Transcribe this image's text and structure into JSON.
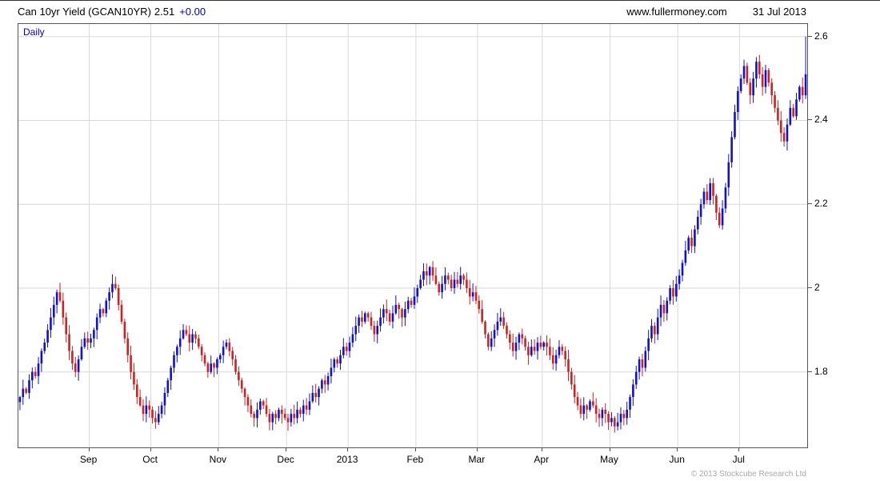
{
  "header": {
    "title": "Can 10yr Yield (GCAN10YR)",
    "price": "2.51",
    "change": "+0.00",
    "website": "www.fullermoney.com",
    "date": "31 Jul 2013"
  },
  "chart": {
    "frequency_label": "Daily",
    "copyright": "© 2013 Stockcube Research Ltd"
  },
  "chart_data": {
    "type": "candlestick",
    "title": "Can 10yr Yield (GCAN10YR)",
    "frequency": "Daily",
    "last_close": 2.51,
    "change": 0.0,
    "last_day_high": 2.6,
    "up_color": "#1111cc",
    "down_color": "#cc2222",
    "grid": true,
    "legend_position": "none",
    "ylim": [
      1.62,
      2.63
    ],
    "y_ticks": [
      {
        "label": "1.8",
        "value": 1.8
      },
      {
        "label": "2",
        "value": 2.0
      },
      {
        "label": "2.2",
        "value": 2.2
      },
      {
        "label": "2.4",
        "value": 2.4
      },
      {
        "label": "2.6",
        "value": 2.6
      }
    ],
    "x_labels": [
      {
        "label": "Sep",
        "index": 23
      },
      {
        "label": "Oct",
        "index": 43
      },
      {
        "label": "Nov",
        "index": 65
      },
      {
        "label": "Dec",
        "index": 87
      },
      {
        "label": "2013",
        "index": 107
      },
      {
        "label": "Feb",
        "index": 129
      },
      {
        "label": "Mar",
        "index": 149
      },
      {
        "label": "Apr",
        "index": 170
      },
      {
        "label": "May",
        "index": 192
      },
      {
        "label": "Jun",
        "index": 214
      },
      {
        "label": "Jul",
        "index": 234
      }
    ],
    "closes": [
      1.74,
      1.76,
      1.75,
      1.78,
      1.8,
      1.79,
      1.82,
      1.85,
      1.87,
      1.9,
      1.93,
      1.96,
      1.99,
      1.97,
      1.93,
      1.89,
      1.85,
      1.82,
      1.8,
      1.83,
      1.86,
      1.88,
      1.87,
      1.88,
      1.9,
      1.93,
      1.95,
      1.94,
      1.97,
      1.99,
      2.01,
      2.0,
      1.96,
      1.92,
      1.88,
      1.84,
      1.8,
      1.77,
      1.74,
      1.72,
      1.7,
      1.72,
      1.71,
      1.69,
      1.68,
      1.7,
      1.72,
      1.75,
      1.78,
      1.81,
      1.84,
      1.86,
      1.88,
      1.9,
      1.89,
      1.87,
      1.89,
      1.88,
      1.86,
      1.84,
      1.82,
      1.8,
      1.82,
      1.81,
      1.83,
      1.84,
      1.86,
      1.87,
      1.85,
      1.83,
      1.8,
      1.78,
      1.76,
      1.74,
      1.72,
      1.7,
      1.69,
      1.71,
      1.73,
      1.72,
      1.7,
      1.68,
      1.7,
      1.69,
      1.71,
      1.7,
      1.69,
      1.68,
      1.7,
      1.69,
      1.71,
      1.7,
      1.72,
      1.71,
      1.73,
      1.75,
      1.74,
      1.76,
      1.78,
      1.77,
      1.79,
      1.81,
      1.83,
      1.82,
      1.84,
      1.86,
      1.85,
      1.87,
      1.89,
      1.91,
      1.93,
      1.92,
      1.94,
      1.93,
      1.91,
      1.89,
      1.91,
      1.93,
      1.95,
      1.94,
      1.92,
      1.94,
      1.96,
      1.95,
      1.93,
      1.95,
      1.97,
      1.96,
      1.98,
      2.0,
      2.02,
      2.04,
      2.03,
      2.05,
      2.03,
      2.01,
      1.99,
      2.01,
      2.03,
      2.02,
      2.0,
      2.02,
      2.01,
      2.03,
      2.02,
      2.0,
      1.98,
      1.99,
      1.97,
      1.95,
      1.92,
      1.89,
      1.86,
      1.88,
      1.9,
      1.92,
      1.93,
      1.91,
      1.89,
      1.87,
      1.85,
      1.87,
      1.89,
      1.88,
      1.86,
      1.84,
      1.86,
      1.85,
      1.87,
      1.86,
      1.87,
      1.86,
      1.84,
      1.82,
      1.84,
      1.86,
      1.85,
      1.83,
      1.8,
      1.77,
      1.74,
      1.72,
      1.7,
      1.72,
      1.71,
      1.73,
      1.72,
      1.7,
      1.69,
      1.71,
      1.7,
      1.68,
      1.69,
      1.67,
      1.68,
      1.7,
      1.69,
      1.71,
      1.74,
      1.77,
      1.8,
      1.83,
      1.81,
      1.85,
      1.88,
      1.91,
      1.89,
      1.93,
      1.96,
      1.94,
      1.97,
      2.0,
      1.98,
      2.01,
      2.03,
      2.06,
      2.09,
      2.12,
      2.1,
      2.14,
      2.17,
      2.2,
      2.23,
      2.21,
      2.25,
      2.22,
      2.18,
      2.15,
      2.19,
      2.24,
      2.3,
      2.36,
      2.42,
      2.47,
      2.5,
      2.53,
      2.49,
      2.46,
      2.5,
      2.54,
      2.51,
      2.48,
      2.52,
      2.49,
      2.46,
      2.43,
      2.4,
      2.37,
      2.35,
      2.39,
      2.43,
      2.41,
      2.45,
      2.48,
      2.46,
      2.51
    ]
  }
}
